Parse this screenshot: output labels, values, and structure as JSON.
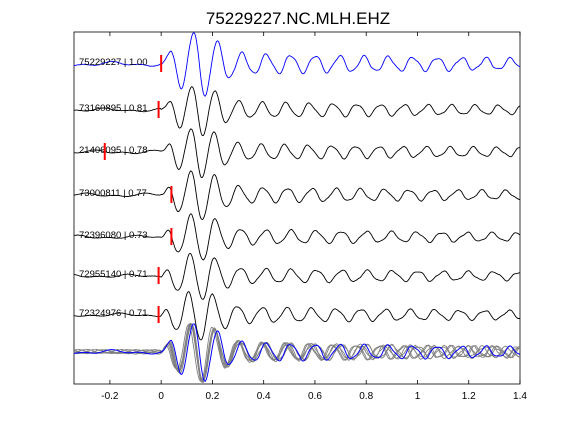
{
  "chart_data": {
    "type": "line",
    "title": "75229227.NC.MLH.EHZ",
    "xlabel": "",
    "ylabel": "",
    "xlim": [
      -0.34,
      1.4
    ],
    "xticks": [
      -0.2,
      0,
      0.2,
      0.4,
      0.6,
      0.8,
      1,
      1.2,
      1.4
    ],
    "xtick_labels": [
      "-0.2",
      "0",
      "0.2",
      "0.4",
      "0.6",
      "0.8",
      "1",
      "1.2",
      "1.4"
    ],
    "grid": false,
    "legend": "none",
    "colors": {
      "reference": "#0000ff",
      "neighbor": "#000000",
      "stack_neighbor": "#808080",
      "pick": "#ff0000"
    },
    "series": [
      {
        "label": "75229227 | 1.00",
        "pick_time": 0.0,
        "reference": true
      },
      {
        "label": "73160895 | 0.81",
        "pick_time": -0.01
      },
      {
        "label": "21406095 | 0.78",
        "pick_time": -0.22
      },
      {
        "label": "73000811 | 0.77",
        "pick_time": 0.04
      },
      {
        "label": "72396080 | 0.73",
        "pick_time": 0.04
      },
      {
        "label": "72955140 | 0.71",
        "pick_time": -0.01
      },
      {
        "label": "72324976 | 0.71",
        "pick_time": -0.01
      }
    ],
    "stack": {
      "present": true
    }
  }
}
